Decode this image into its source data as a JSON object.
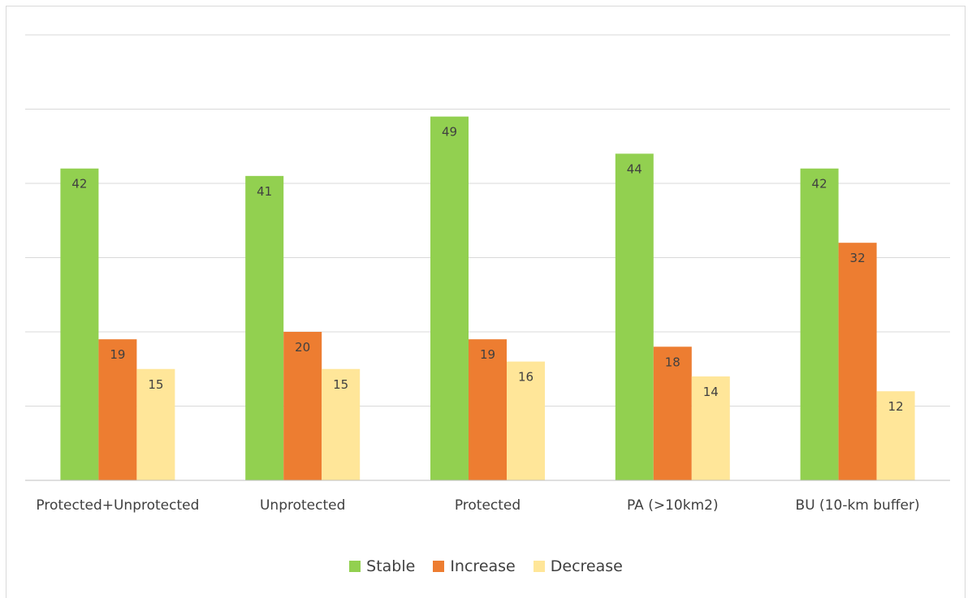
{
  "chart_data": {
    "type": "bar",
    "title": "",
    "xlabel": "",
    "ylabel": "",
    "categories": [
      "Protected+Unprotected",
      "Unprotected",
      "Protected",
      "PA (>10km2)",
      "BU (10-km buffer)"
    ],
    "series": [
      {
        "name": "Stable",
        "color": "#92D050",
        "values": [
          42,
          41,
          49,
          44,
          42
        ]
      },
      {
        "name": "Increase",
        "color": "#ED7D31",
        "values": [
          19,
          20,
          19,
          18,
          32
        ]
      },
      {
        "name": "Decrease",
        "color": "#FFE699",
        "values": [
          15,
          15,
          16,
          14,
          12
        ]
      }
    ],
    "ylim": [
      0,
      60
    ],
    "ytick_step": 10,
    "show_y_tick_labels": false,
    "grid": true,
    "data_labels": true,
    "legend": "bottom"
  },
  "colors": {
    "grid": "#d9d9d9",
    "axis": "#bfbfbf",
    "text": "#404040"
  }
}
